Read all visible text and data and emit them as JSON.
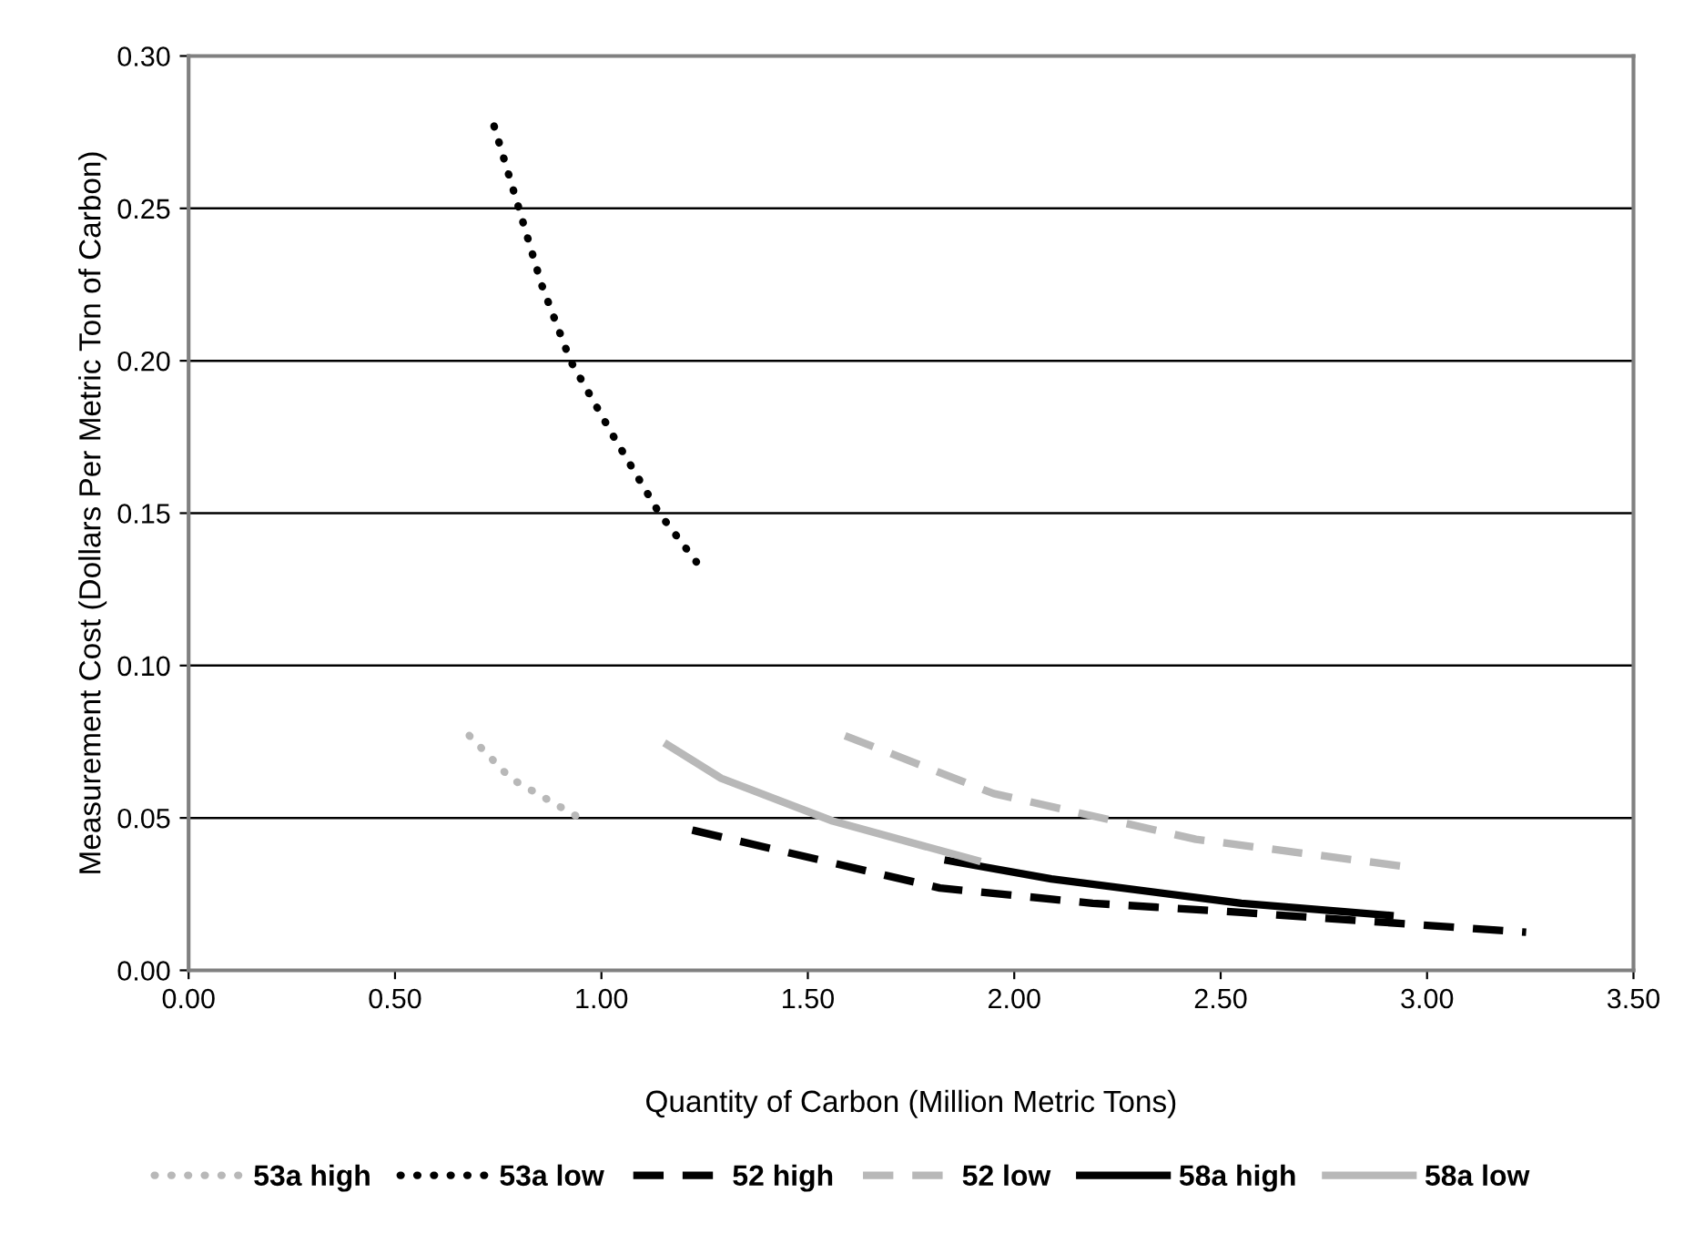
{
  "chart_data": {
    "type": "line",
    "xlabel": "Quantity of Carbon (Million Metric Tons)",
    "ylabel": "Measurement Cost (Dollars Per Metric Ton of Carbon)",
    "xlim": [
      0,
      3.5
    ],
    "xticks": [
      {
        "value": 0,
        "label": "0.00"
      },
      {
        "value": 0.5,
        "label": "0.50"
      },
      {
        "value": 1,
        "label": "1.00"
      },
      {
        "value": 1.5,
        "label": "1.50"
      },
      {
        "value": 2,
        "label": "2.00"
      },
      {
        "value": 2.5,
        "label": "2.50"
      },
      {
        "value": 3,
        "label": "3.00"
      },
      {
        "value": 3.5,
        "label": "3.50"
      }
    ],
    "ylim": [
      0,
      0.3
    ],
    "yticks": [
      {
        "value": 0,
        "label": "0.00"
      },
      {
        "value": 0.05,
        "label": "0.05"
      },
      {
        "value": 0.1,
        "label": "0.10"
      },
      {
        "value": 0.15,
        "label": "0.15"
      },
      {
        "value": 0.2,
        "label": "0.20"
      },
      {
        "value": 0.25,
        "label": "0.25"
      },
      {
        "value": 0.3,
        "label": "0.30"
      }
    ],
    "grid": "y",
    "legend": "bottom",
    "series": [
      {
        "name": "53a high",
        "color": "#b8b8b8",
        "line_style": "dotted",
        "x": [
          0.68,
          0.78,
          0.96
        ],
        "values": [
          0.077,
          0.063,
          0.049
        ]
      },
      {
        "name": "53a low",
        "color": "#000000",
        "line_style": "dotted",
        "x": [
          0.74,
          0.8,
          0.855,
          0.925,
          1.03,
          1.14,
          1.23
        ],
        "values": [
          0.277,
          0.25,
          0.225,
          0.2,
          0.175,
          0.15,
          0.134
        ]
      },
      {
        "name": "52 high",
        "color": "#000000",
        "line_style": "dashed",
        "x": [
          1.22,
          1.82,
          2.19,
          2.55,
          3.24
        ],
        "values": [
          0.046,
          0.027,
          0.022,
          0.019,
          0.0125
        ]
      },
      {
        "name": "52 low",
        "color": "#b8b8b8",
        "line_style": "dashed",
        "x": [
          1.59,
          1.95,
          2.44,
          2.95
        ],
        "values": [
          0.077,
          0.058,
          0.043,
          0.034
        ]
      },
      {
        "name": "58a high",
        "color": "#000000",
        "line_style": "solid",
        "x": [
          1.84,
          2.09,
          2.55,
          2.91
        ],
        "values": [
          0.036,
          0.03,
          0.022,
          0.018
        ]
      },
      {
        "name": "58a low",
        "color": "#b8b8b8",
        "line_style": "solid",
        "x": [
          1.16,
          1.29,
          1.56,
          1.91
        ],
        "values": [
          0.074,
          0.063,
          0.049,
          0.036
        ]
      }
    ]
  }
}
